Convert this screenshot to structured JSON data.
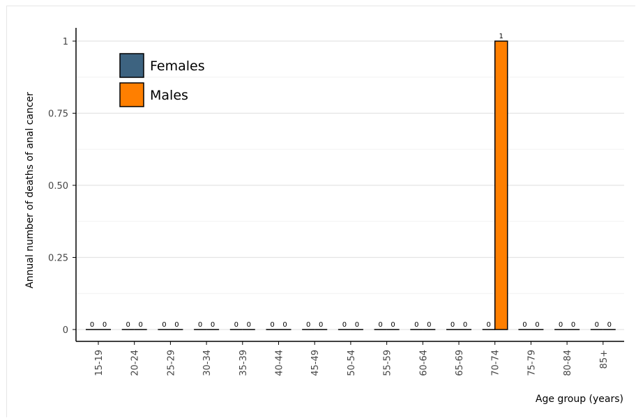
{
  "chart_data": {
    "type": "bar",
    "categories": [
      "15-19",
      "20-24",
      "25-29",
      "30-34",
      "35-39",
      "40-44",
      "45-49",
      "50-54",
      "55-59",
      "60-64",
      "65-69",
      "70-74",
      "75-79",
      "80-84",
      "85+"
    ],
    "series": [
      {
        "name": "Females",
        "color": "#3d6380",
        "values": [
          0,
          0,
          0,
          0,
          0,
          0,
          0,
          0,
          0,
          0,
          0,
          0,
          0,
          0,
          0
        ]
      },
      {
        "name": "Males",
        "color": "#ff7f00",
        "values": [
          0,
          0,
          0,
          0,
          0,
          0,
          0,
          0,
          0,
          0,
          0,
          1,
          0,
          0,
          0
        ]
      }
    ],
    "xlabel": "Age group (years)",
    "ylabel": "Annual number of deaths of anal cancer",
    "ylim": [
      0,
      1
    ],
    "yticks": [
      0,
      0.25,
      0.5,
      0.75,
      1
    ],
    "ytick_labels": [
      "0",
      "0.25",
      "0.50",
      "0.75",
      "1"
    ],
    "grid": true,
    "legend_position": "top-left"
  }
}
